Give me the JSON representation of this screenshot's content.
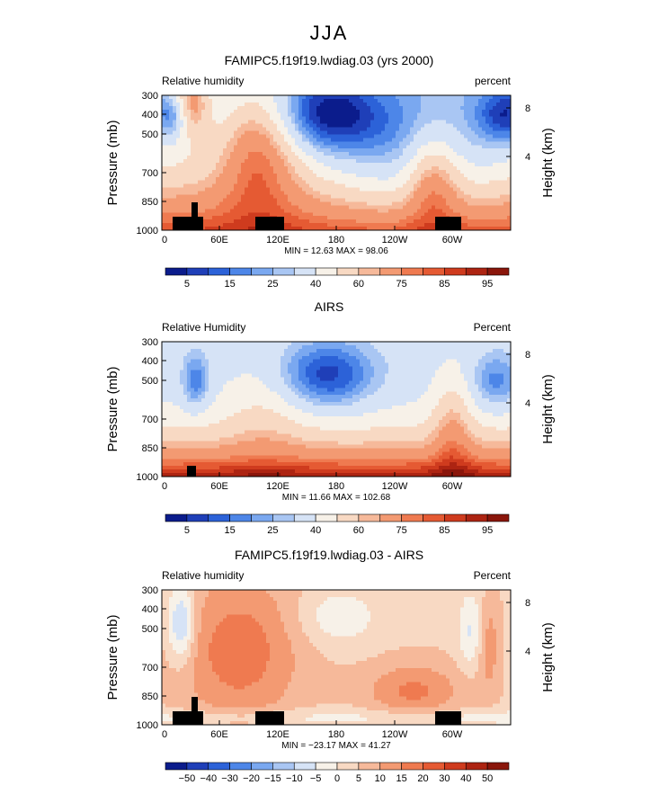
{
  "page_title": "JJA",
  "colors": {
    "seq": [
      "#0b1c8c",
      "#1f3fb8",
      "#2c62d8",
      "#4d86e8",
      "#7aa8f0",
      "#a9c6f3",
      "#d6e3f6",
      "#f7f1e8",
      "#f8d9c3",
      "#f6b99a",
      "#f39a72",
      "#ef7a50",
      "#e55a33",
      "#cf3b1e",
      "#ad2412",
      "#8a160b"
    ],
    "diff": [
      "#0b1c8c",
      "#1f3fb8",
      "#2c62d8",
      "#4d86e8",
      "#7aa8f0",
      "#a9c6f3",
      "#d6e3f6",
      "#f7f1e8",
      "#f8d9c3",
      "#f6b99a",
      "#f39a72",
      "#ef7a50",
      "#e55a33",
      "#cf3b1e",
      "#ad2412",
      "#8a160b"
    ],
    "topo": "#000000"
  },
  "chart_data": [
    {
      "type": "heatmap",
      "title": "FAMIPC5.f19f19.lwdiag.03 (yrs 2000)",
      "left_label": "Relative humidity",
      "right_label": "percent",
      "ylabel": "Pressure (mb)",
      "y2label": "Height (km)",
      "yticks": [
        "300",
        "400",
        "500",
        "700",
        "850",
        "1000"
      ],
      "y2ticks": [
        "8",
        "4"
      ],
      "xticks": [
        "0",
        "60E",
        "120E",
        "180",
        "120W",
        "60W"
      ],
      "stats": "MIN =  12.63   MAX =  98.06",
      "colorbar_labels": [
        "5",
        "15",
        "25",
        "40",
        "60",
        "75",
        "85",
        "95"
      ],
      "field": "model",
      "palette": "seq"
    },
    {
      "type": "heatmap",
      "title": "AIRS",
      "left_label": "Relative Humidity",
      "right_label": "Percent",
      "ylabel": "Pressure (mb)",
      "y2label": "Height (km)",
      "yticks": [
        "300",
        "400",
        "500",
        "700",
        "850",
        "1000"
      ],
      "y2ticks": [
        "8",
        "4"
      ],
      "xticks": [
        "0",
        "60E",
        "120E",
        "180",
        "120W",
        "60W"
      ],
      "stats": "MIN =  11.66   MAX = 102.68",
      "colorbar_labels": [
        "5",
        "15",
        "25",
        "40",
        "60",
        "75",
        "85",
        "95"
      ],
      "field": "obs",
      "palette": "seq"
    },
    {
      "type": "heatmap",
      "title": "FAMIPC5.f19f19.lwdiag.03 - AIRS",
      "left_label": "Relative humidity",
      "right_label": "Percent",
      "ylabel": "Pressure (mb)",
      "y2label": "Height (km)",
      "yticks": [
        "300",
        "400",
        "500",
        "700",
        "850",
        "1000"
      ],
      "y2ticks": [
        "8",
        "4"
      ],
      "xticks": [
        "0",
        "60E",
        "120E",
        "180",
        "120W",
        "60W"
      ],
      "stats": "MIN = −23.17   MAX =  41.27",
      "colorbar_labels": [
        "−50",
        "−40",
        "−30",
        "−20",
        "−15",
        "−10",
        "−5",
        "0",
        "5",
        "10",
        "15",
        "20",
        "30",
        "40",
        "50"
      ],
      "field": "diff",
      "palette": "diff"
    }
  ]
}
